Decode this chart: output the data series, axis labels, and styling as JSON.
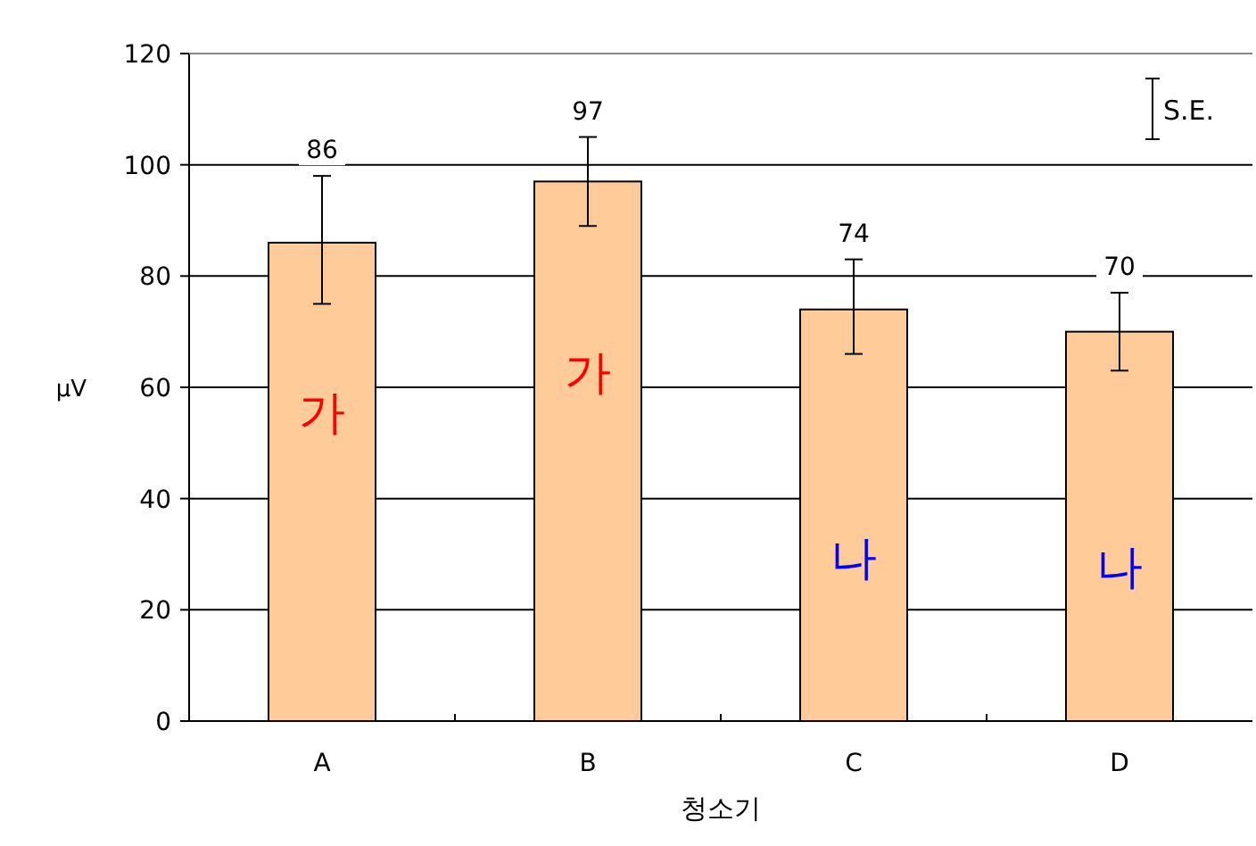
{
  "chart_data": {
    "type": "bar",
    "categories": [
      "A",
      "B",
      "C",
      "D"
    ],
    "values": [
      86,
      97,
      74,
      70
    ],
    "errors": [
      [
        75,
        98
      ],
      [
        89,
        105
      ],
      [
        66,
        83
      ],
      [
        63,
        77
      ]
    ],
    "color": "#ffcc99",
    "data_labels": true,
    "xlabel": "청소기",
    "ylabel": "μV",
    "ylim": [
      0,
      120
    ],
    "yticks": [
      0,
      20,
      40,
      60,
      80,
      100,
      120
    ],
    "grid": "y",
    "annotations": [
      "가",
      "가",
      "나",
      "나",
      "S.E."
    ]
  }
}
